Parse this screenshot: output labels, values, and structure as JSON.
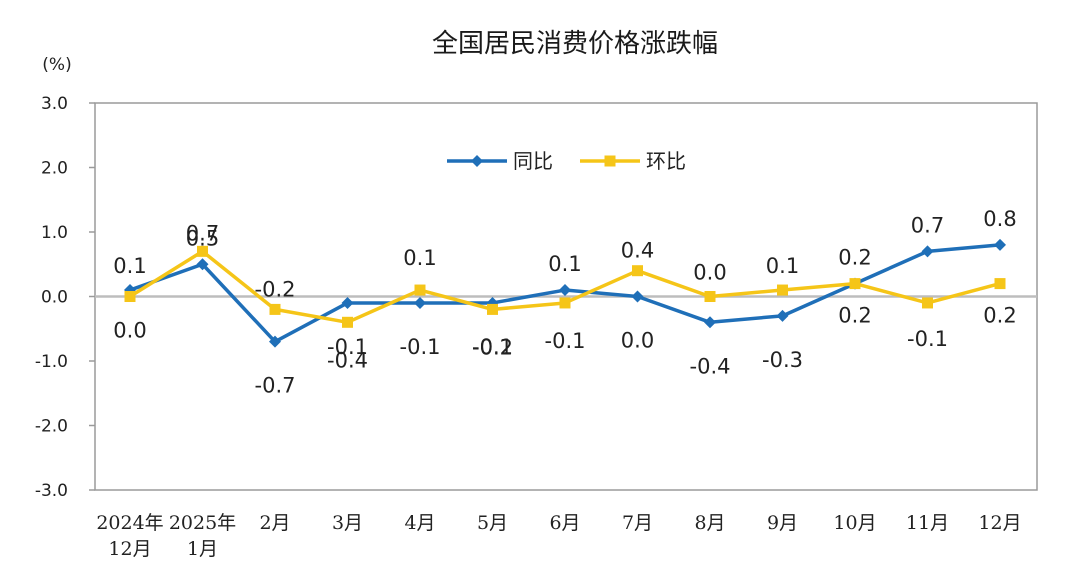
{
  "chart_data": {
    "type": "line",
    "title": "全国居民消费价格涨跌幅",
    "unit_label": "(%)",
    "ylim": [
      -3.0,
      3.0
    ],
    "yticks": [
      "3.0",
      "2.0",
      "1.0",
      "0.0",
      "-1.0",
      "-2.0",
      "-3.0"
    ],
    "categories": [
      [
        "2024年",
        "12月"
      ],
      [
        "2025年",
        "1月"
      ],
      [
        "2月"
      ],
      [
        "3月"
      ],
      [
        "4月"
      ],
      [
        "5月"
      ],
      [
        "6月"
      ],
      [
        "7月"
      ],
      [
        "8月"
      ],
      [
        "9月"
      ],
      [
        "10月"
      ],
      [
        "11月"
      ],
      [
        "12月"
      ]
    ],
    "series": [
      {
        "name": "同比",
        "color": "#1f6fb8",
        "marker": "diamond",
        "values": [
          0.1,
          0.5,
          -0.7,
          -0.1,
          -0.1,
          -0.1,
          0.1,
          0.0,
          -0.4,
          -0.3,
          0.2,
          0.7,
          0.8
        ],
        "labels": [
          "0.1",
          "0.5",
          "-0.7",
          "-0.1",
          "-0.1",
          "-0.1",
          "0.1",
          "0.0",
          "-0.4",
          "-0.3",
          "0.2",
          "0.7",
          "0.8"
        ]
      },
      {
        "name": "环比",
        "color": "#f5c518",
        "marker": "square",
        "values": [
          0.0,
          0.7,
          -0.2,
          -0.4,
          0.1,
          -0.2,
          -0.1,
          0.4,
          0.0,
          0.1,
          0.2,
          -0.1,
          0.2
        ],
        "labels": [
          "0.0",
          "0.7",
          "-0.2",
          "-0.4",
          "0.1",
          "-0.2",
          "-0.1",
          "0.4",
          "0.0",
          "0.1",
          "0.2",
          "-0.1",
          "0.2"
        ]
      }
    ],
    "legend": "top-center",
    "grid": false
  }
}
